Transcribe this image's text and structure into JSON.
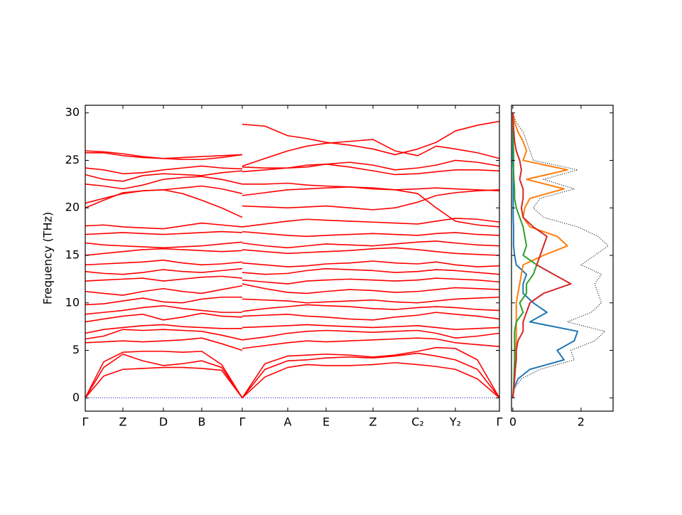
{
  "chart_data": [
    {
      "type": "line",
      "ylabel": "Frequency (THz)",
      "color": "#ff0000",
      "zero_line_color": "#0000cc",
      "xlim": [
        0,
        583
      ],
      "xticks": [
        {
          "value": 0,
          "label": "Γ"
        },
        {
          "value": 53,
          "label": "Z"
        },
        {
          "value": 110,
          "label": "D"
        },
        {
          "value": 164,
          "label": "B"
        },
        {
          "value": 221,
          "label": "Γ"
        },
        {
          "value": 285,
          "label": "A"
        },
        {
          "value": 339,
          "label": "E"
        },
        {
          "value": 405,
          "label": "Z"
        },
        {
          "value": 468,
          "label": "C₂"
        },
        {
          "value": 521,
          "label": "Y₂"
        },
        {
          "value": 583,
          "label": "Γ"
        }
      ],
      "ylim": [
        -1.4,
        30.8
      ],
      "yticks": [
        0,
        5,
        10,
        15,
        20,
        25,
        30
      ],
      "x": [
        0,
        26,
        53,
        81,
        110,
        137,
        164,
        192,
        221,
        221,
        221,
        253,
        285,
        312,
        339,
        372,
        405,
        436,
        468,
        494,
        521,
        552,
        583
      ],
      "series": [
        {
          "values": [
            0,
            2.3,
            3.0,
            3.1,
            3.2,
            3.2,
            3.1,
            2.9,
            0,
            null,
            0,
            2.2,
            3.2,
            3.5,
            3.4,
            3.4,
            3.5,
            3.7,
            3.5,
            3.3,
            3.0,
            2.0,
            0
          ]
        },
        {
          "values": [
            0,
            3.2,
            4.6,
            3.9,
            3.4,
            3.6,
            3.9,
            3.2,
            0,
            null,
            0,
            3.0,
            3.9,
            4.0,
            4.2,
            4.3,
            4.2,
            4.4,
            4.7,
            4.4,
            4.0,
            3.0,
            0
          ]
        },
        {
          "values": [
            0,
            3.8,
            4.8,
            4.9,
            4.9,
            4.8,
            4.9,
            3.5,
            0,
            null,
            0,
            3.6,
            4.4,
            4.5,
            4.6,
            4.5,
            4.3,
            4.5,
            4.9,
            5.3,
            5.2,
            4.0,
            0
          ]
        },
        {
          "values": [
            5.8,
            5.9,
            6.0,
            5.9,
            6.0,
            6.1,
            6.3,
            5.7,
            5.0,
            null,
            5.2,
            5.5,
            5.8,
            6.0,
            5.9,
            6.0,
            6.1,
            6.2,
            6.3,
            6.2,
            5.8,
            5.6,
            5.4
          ]
        },
        {
          "values": [
            6.2,
            6.5,
            7.2,
            7.1,
            7.2,
            7.1,
            7.0,
            6.6,
            6.1,
            null,
            6.1,
            6.4,
            6.8,
            7.0,
            7.1,
            7.0,
            6.9,
            7.0,
            7.1,
            6.8,
            6.3,
            6.5,
            6.8
          ]
        },
        {
          "values": [
            6.8,
            7.2,
            7.4,
            7.6,
            7.7,
            7.5,
            7.4,
            7.3,
            7.3,
            null,
            7.4,
            7.5,
            7.6,
            7.7,
            7.6,
            7.5,
            7.4,
            7.5,
            7.6,
            7.4,
            7.2,
            7.3,
            7.4
          ]
        },
        {
          "values": [
            8.0,
            8.3,
            8.6,
            8.8,
            8.2,
            8.5,
            8.9,
            8.6,
            8.5,
            null,
            8.6,
            8.7,
            8.8,
            8.6,
            8.5,
            8.3,
            8.2,
            8.5,
            8.7,
            9.0,
            8.8,
            8.6,
            8.3
          ]
        },
        {
          "values": [
            8.8,
            9.0,
            9.2,
            9.5,
            9.7,
            9.4,
            9.2,
            9.0,
            9.0,
            null,
            9.1,
            9.4,
            9.6,
            9.8,
            9.7,
            9.6,
            9.4,
            9.3,
            9.5,
            9.6,
            9.5,
            9.3,
            9.2
          ]
        },
        {
          "values": [
            9.8,
            9.9,
            10.2,
            10.5,
            10.1,
            10.0,
            10.4,
            10.6,
            10.6,
            null,
            10.4,
            10.3,
            10.2,
            10.0,
            10.1,
            10.2,
            10.3,
            10.1,
            10.0,
            10.2,
            10.4,
            10.5,
            10.6
          ]
        },
        {
          "values": [
            11.2,
            11.0,
            10.8,
            11.2,
            11.5,
            11.2,
            11.0,
            11.4,
            11.8,
            null,
            12.0,
            11.5,
            11.1,
            11.0,
            11.2,
            11.4,
            11.3,
            11.1,
            11.2,
            11.4,
            11.6,
            11.5,
            11.4
          ]
        },
        {
          "values": [
            12.3,
            12.4,
            12.5,
            12.6,
            12.3,
            12.5,
            12.7,
            12.8,
            12.6,
            null,
            12.4,
            12.2,
            12.0,
            12.3,
            12.4,
            12.5,
            12.4,
            12.3,
            12.4,
            12.6,
            12.5,
            12.4,
            12.2
          ]
        },
        {
          "values": [
            13.3,
            13.1,
            13.0,
            13.2,
            13.5,
            13.3,
            13.2,
            13.4,
            13.6,
            null,
            13.2,
            13.0,
            13.1,
            13.4,
            13.6,
            13.5,
            13.4,
            13.2,
            13.3,
            13.5,
            13.4,
            13.2,
            13.0
          ]
        },
        {
          "values": [
            14.0,
            14.1,
            14.2,
            14.3,
            14.5,
            14.2,
            14.0,
            14.1,
            14.3,
            null,
            14.2,
            14.0,
            13.8,
            13.9,
            14.1,
            14.2,
            14.4,
            14.2,
            14.1,
            14.3,
            14.0,
            13.8,
            13.9
          ]
        },
        {
          "values": [
            15.0,
            15.2,
            15.4,
            15.6,
            15.7,
            15.6,
            15.5,
            15.4,
            15.5,
            null,
            15.6,
            15.4,
            15.2,
            15.3,
            15.4,
            15.5,
            15.7,
            15.8,
            15.6,
            15.4,
            15.2,
            15.1,
            15.0
          ]
        },
        {
          "values": [
            16.3,
            16.1,
            16.0,
            15.9,
            15.8,
            15.9,
            16.0,
            16.2,
            16.4,
            null,
            16.3,
            16.0,
            15.8,
            16.0,
            16.2,
            16.1,
            16.0,
            16.2,
            16.4,
            16.5,
            16.3,
            16.1,
            16.0
          ]
        },
        {
          "values": [
            17.2,
            17.3,
            17.4,
            17.3,
            17.2,
            17.3,
            17.4,
            17.5,
            17.4,
            null,
            17.5,
            17.3,
            17.1,
            17.0,
            17.1,
            17.2,
            17.3,
            17.2,
            17.1,
            17.3,
            17.4,
            17.2,
            17.1
          ]
        },
        {
          "values": [
            18.1,
            18.2,
            18.0,
            17.9,
            17.8,
            18.1,
            18.4,
            18.2,
            18.0,
            null,
            18.0,
            18.3,
            18.6,
            18.8,
            18.7,
            18.6,
            18.5,
            18.4,
            18.3,
            18.6,
            18.9,
            18.8,
            18.5
          ]
        },
        {
          "values": [
            20.0,
            20.8,
            21.6,
            21.8,
            21.9,
            21.5,
            20.8,
            20.0,
            19.0,
            null,
            20.2,
            20.1,
            20.0,
            20.1,
            20.2,
            20.0,
            19.8,
            20.0,
            20.6,
            21.3,
            21.6,
            21.8,
            21.9
          ]
        },
        {
          "values": [
            20.5,
            21.0,
            21.5,
            21.8,
            21.9,
            22.1,
            22.3,
            22.0,
            21.5,
            null,
            21.3,
            21.6,
            21.9,
            22.0,
            22.1,
            22.2,
            22.1,
            21.9,
            21.5,
            20.0,
            18.6,
            18.2,
            18.0
          ]
        },
        {
          "values": [
            22.5,
            22.3,
            22.0,
            22.4,
            23.0,
            23.2,
            23.3,
            23.0,
            22.5,
            null,
            22.5,
            22.5,
            22.6,
            22.4,
            22.3,
            22.2,
            22.0,
            21.9,
            22.0,
            22.1,
            22.0,
            21.9,
            21.8
          ]
        },
        {
          "values": [
            23.5,
            23.0,
            22.8,
            23.4,
            23.6,
            23.5,
            23.4,
            23.7,
            23.9,
            null,
            23.8,
            24.0,
            24.2,
            24.5,
            24.6,
            24.3,
            23.9,
            23.5,
            23.6,
            23.8,
            24.0,
            24.0,
            23.9
          ]
        },
        {
          "values": [
            24.2,
            24.0,
            23.6,
            23.7,
            24.0,
            24.2,
            24.4,
            24.2,
            24.1,
            null,
            24.3,
            24.2,
            24.2,
            24.3,
            24.6,
            24.8,
            24.5,
            24.0,
            24.2,
            24.5,
            25.0,
            24.8,
            24.4
          ]
        },
        {
          "values": [
            25.8,
            25.8,
            25.5,
            25.3,
            25.2,
            25.3,
            25.4,
            25.5,
            25.6,
            null,
            24.4,
            25.2,
            26.0,
            26.5,
            26.8,
            27.0,
            27.2,
            26.0,
            25.5,
            26.5,
            26.2,
            25.8,
            25.2
          ]
        },
        {
          "values": [
            26.0,
            25.9,
            25.7,
            25.4,
            25.2,
            25.1,
            25.1,
            25.3,
            25.6,
            null,
            28.8,
            28.6,
            27.6,
            27.3,
            26.9,
            26.6,
            26.2,
            25.6,
            26.2,
            26.9,
            28.1,
            28.7,
            29.1
          ]
        }
      ]
    },
    {
      "type": "line",
      "orientation": "horizontal",
      "xlim": [
        -0.04,
        2.94
      ],
      "xticks": [
        0,
        2
      ],
      "ylim": [
        -1.4,
        30.8
      ],
      "yticks": [
        0,
        5,
        10,
        15,
        20,
        25,
        30
      ],
      "y": [
        0,
        1,
        2,
        3,
        4,
        5,
        6,
        7,
        8,
        9,
        10,
        11,
        12,
        13,
        14,
        15,
        16,
        17,
        18,
        19,
        20,
        21,
        22,
        23,
        24,
        25,
        26,
        27,
        28,
        29,
        30
      ],
      "series": [
        {
          "color": "#000000",
          "linestyle": "dotted",
          "values": [
            0,
            0.05,
            0.25,
            0.8,
            1.8,
            1.7,
            2.4,
            2.7,
            1.6,
            2.3,
            2.6,
            2.5,
            2.4,
            2.6,
            2.0,
            2.4,
            2.8,
            2.5,
            1.9,
            0.9,
            0.6,
            0.8,
            1.8,
            0.9,
            1.9,
            0.6,
            0.5,
            0.4,
            0.3,
            0.1,
            0
          ]
        },
        {
          "color": "#1f77b4",
          "linestyle": "solid",
          "values": [
            0,
            0.03,
            0.15,
            0.5,
            1.5,
            1.3,
            1.8,
            1.9,
            0.5,
            1.0,
            0.6,
            0.3,
            0.3,
            0.4,
            0.1,
            0.05,
            0.02,
            0.02,
            0.02,
            0.01,
            0.01,
            0.01,
            0.01,
            0.01,
            0.01,
            0,
            0,
            0,
            0,
            0,
            0
          ]
        },
        {
          "color": "#ff7f0e",
          "linestyle": "solid",
          "values": [
            0,
            0.02,
            0.05,
            0.07,
            0.08,
            0.08,
            0.1,
            0.1,
            0.1,
            0.1,
            0.1,
            0.15,
            0.2,
            0.25,
            0.3,
            0.9,
            1.6,
            1.3,
            0.5,
            0.3,
            0.35,
            0.5,
            1.5,
            0.4,
            1.6,
            0.3,
            0.4,
            0.3,
            0.15,
            0.05,
            0
          ]
        },
        {
          "color": "#2ca02c",
          "linestyle": "solid",
          "values": [
            0,
            0.02,
            0.03,
            0.04,
            0.05,
            0.05,
            0.05,
            0.05,
            0.1,
            0.3,
            0.2,
            0.4,
            0.4,
            0.6,
            0.7,
            0.3,
            0.4,
            0.35,
            0.3,
            0.2,
            0.1,
            0.05,
            0.05,
            0.03,
            0.02,
            0.02,
            0.02,
            0.01,
            0.01,
            0,
            0
          ]
        },
        {
          "color": "#d62728",
          "linestyle": "solid",
          "values": [
            0,
            0.03,
            0.05,
            0.07,
            0.1,
            0.1,
            0.15,
            0.3,
            0.3,
            0.4,
            0.5,
            0.9,
            1.7,
            1.2,
            0.7,
            0.8,
            0.9,
            1.0,
            0.6,
            0.3,
            0.25,
            0.3,
            0.3,
            0.2,
            0.25,
            0.2,
            0.1,
            0.05,
            0.03,
            0.01,
            0
          ]
        }
      ]
    }
  ]
}
